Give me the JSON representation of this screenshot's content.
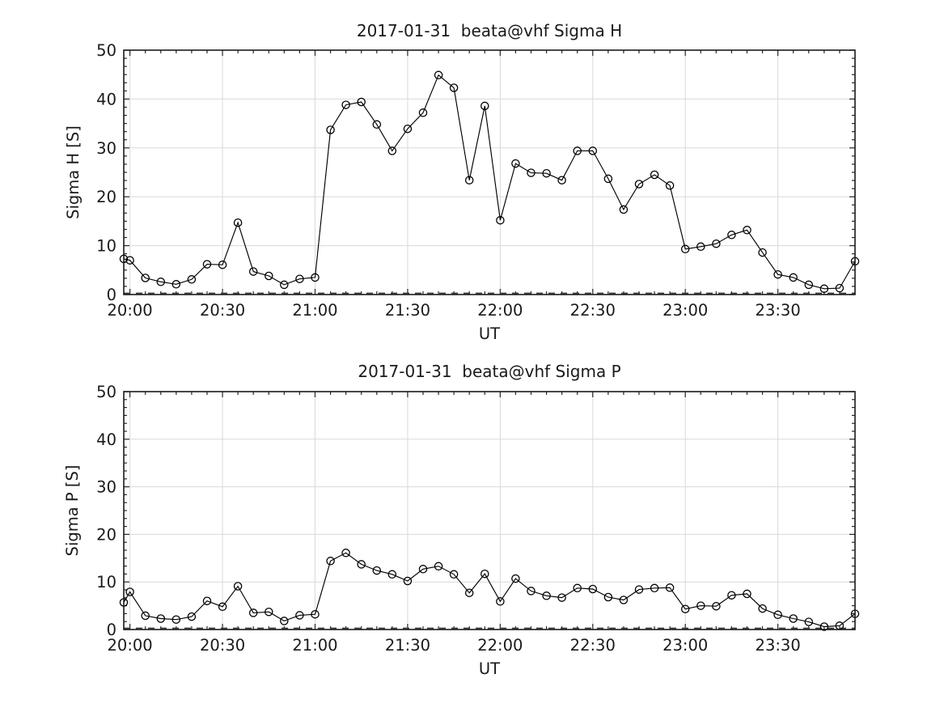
{
  "figure": {
    "background": "#ffffff",
    "text_color": "#1a1a1a",
    "grid_color": "#d9d9d9"
  },
  "chart_data": [
    {
      "type": "line",
      "title": "2017-01-31  beata@vhf Sigma H",
      "xlabel": "UT",
      "ylabel": "Sigma H [S]",
      "x_range": [
        "19:58",
        "23:55"
      ],
      "ylim": [
        0,
        50
      ],
      "grid": true,
      "legend": "none",
      "marker": "open-circle",
      "line_color": "#000000",
      "dashed_baseline_y": 0.25,
      "x_major_ticks": [
        "20:00",
        "20:30",
        "21:00",
        "21:30",
        "22:00",
        "22:30",
        "23:00",
        "23:30"
      ],
      "x_minor_step_minutes": 5,
      "y_major_ticks": [
        0,
        10,
        20,
        30,
        40,
        50
      ],
      "y_minor_divisions": 6,
      "times": [
        "19:58",
        "20:00",
        "20:05",
        "20:10",
        "20:15",
        "20:20",
        "20:25",
        "20:30",
        "20:35",
        "20:40",
        "20:45",
        "20:50",
        "20:55",
        "21:00",
        "21:05",
        "21:10",
        "21:15",
        "21:20",
        "21:25",
        "21:30",
        "21:35",
        "21:40",
        "21:45",
        "21:50",
        "21:55",
        "22:00",
        "22:05",
        "22:10",
        "22:15",
        "22:20",
        "22:25",
        "22:30",
        "22:35",
        "22:40",
        "22:45",
        "22:50",
        "22:55",
        "23:00",
        "23:05",
        "23:10",
        "23:15",
        "23:20",
        "23:25",
        "23:30",
        "23:35",
        "23:40",
        "23:45",
        "23:50",
        "23:55"
      ],
      "values": [
        7.3,
        7.0,
        3.4,
        2.6,
        2.1,
        3.1,
        6.2,
        6.1,
        14.7,
        4.7,
        3.8,
        2.0,
        3.2,
        3.5,
        33.7,
        38.8,
        39.4,
        34.8,
        29.4,
        33.9,
        37.2,
        44.9,
        42.3,
        23.4,
        38.6,
        15.2,
        26.8,
        24.9,
        24.8,
        23.4,
        29.4,
        29.4,
        23.7,
        17.4,
        22.6,
        24.5,
        22.3,
        9.3,
        9.8,
        10.4,
        12.2,
        13.2,
        8.6,
        4.1,
        3.5,
        2.0,
        1.2,
        1.3,
        6.8
      ]
    },
    {
      "type": "line",
      "title": "2017-01-31  beata@vhf Sigma P",
      "xlabel": "UT",
      "ylabel": "Sigma P [S]",
      "x_range": [
        "19:58",
        "23:55"
      ],
      "ylim": [
        0,
        50
      ],
      "grid": true,
      "legend": "none",
      "marker": "open-circle",
      "line_color": "#000000",
      "dashed_baseline_y": 0.25,
      "x_major_ticks": [
        "20:00",
        "20:30",
        "21:00",
        "21:30",
        "22:00",
        "22:30",
        "23:00",
        "23:30"
      ],
      "x_minor_step_minutes": 5,
      "y_major_ticks": [
        0,
        10,
        20,
        30,
        40,
        50
      ],
      "y_minor_divisions": 6,
      "times": [
        "19:58",
        "20:00",
        "20:05",
        "20:10",
        "20:15",
        "20:20",
        "20:25",
        "20:30",
        "20:35",
        "20:40",
        "20:45",
        "20:50",
        "20:55",
        "21:00",
        "21:05",
        "21:10",
        "21:15",
        "21:20",
        "21:25",
        "21:30",
        "21:35",
        "21:40",
        "21:45",
        "21:50",
        "21:55",
        "22:00",
        "22:05",
        "22:10",
        "22:15",
        "22:20",
        "22:25",
        "22:30",
        "22:35",
        "22:40",
        "22:45",
        "22:50",
        "22:55",
        "23:00",
        "23:05",
        "23:10",
        "23:15",
        "23:20",
        "23:25",
        "23:30",
        "23:35",
        "23:40",
        "23:45",
        "23:50",
        "23:55"
      ],
      "values": [
        5.7,
        7.9,
        2.9,
        2.3,
        2.1,
        2.7,
        6.0,
        4.8,
        9.1,
        3.5,
        3.7,
        1.8,
        3.0,
        3.2,
        14.4,
        16.1,
        13.7,
        12.4,
        11.6,
        10.2,
        12.7,
        13.3,
        11.6,
        7.7,
        11.7,
        5.9,
        10.7,
        8.1,
        7.1,
        6.7,
        8.7,
        8.5,
        6.8,
        6.2,
        8.4,
        8.7,
        8.8,
        4.3,
        5.0,
        4.9,
        7.2,
        7.5,
        4.4,
        3.1,
        2.3,
        1.6,
        0.6,
        0.8,
        3.3
      ]
    }
  ]
}
